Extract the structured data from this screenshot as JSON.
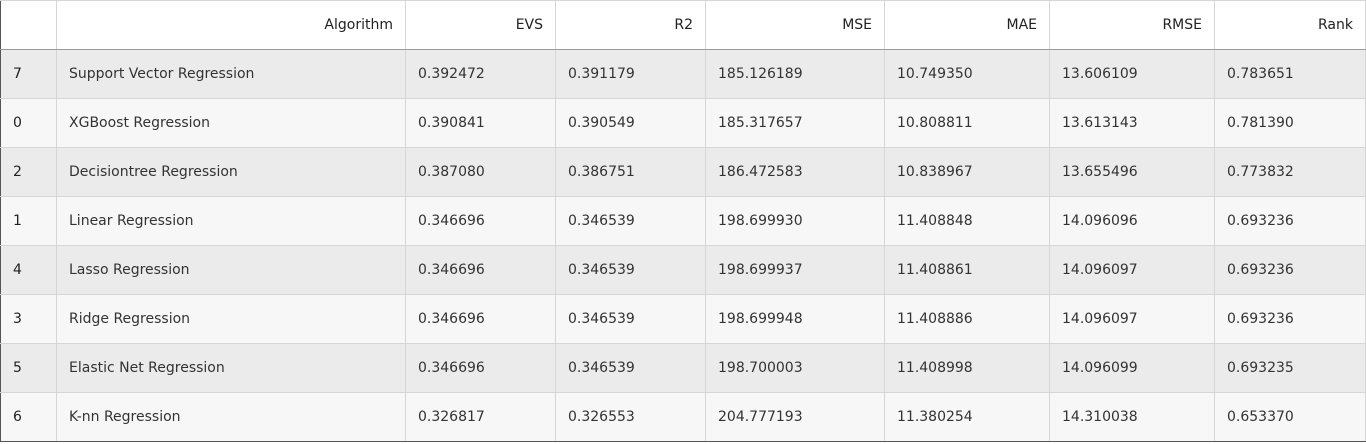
{
  "table": {
    "headers": {
      "index": "",
      "algorithm": "Algorithm",
      "evs": "EVS",
      "r2": "R2",
      "mse": "MSE",
      "mae": "MAE",
      "rmse": "RMSE",
      "rank": "Rank"
    },
    "rows": [
      {
        "index": "7",
        "algorithm": "Support Vector Regression",
        "evs": "0.392472",
        "r2": "0.391179",
        "mse": "185.126189",
        "mae": "10.749350",
        "rmse": "13.606109",
        "rank": "0.783651"
      },
      {
        "index": "0",
        "algorithm": "XGBoost Regression",
        "evs": "0.390841",
        "r2": "0.390549",
        "mse": "185.317657",
        "mae": "10.808811",
        "rmse": "13.613143",
        "rank": "0.781390"
      },
      {
        "index": "2",
        "algorithm": "Decisiontree Regression",
        "evs": "0.387080",
        "r2": "0.386751",
        "mse": "186.472583",
        "mae": "10.838967",
        "rmse": "13.655496",
        "rank": "0.773832"
      },
      {
        "index": "1",
        "algorithm": "Linear Regression",
        "evs": "0.346696",
        "r2": "0.346539",
        "mse": "198.699930",
        "mae": "11.408848",
        "rmse": "14.096096",
        "rank": "0.693236"
      },
      {
        "index": "4",
        "algorithm": "Lasso Regression",
        "evs": "0.346696",
        "r2": "0.346539",
        "mse": "198.699937",
        "mae": "11.408861",
        "rmse": "14.096097",
        "rank": "0.693236"
      },
      {
        "index": "3",
        "algorithm": "Ridge Regression",
        "evs": "0.346696",
        "r2": "0.346539",
        "mse": "198.699948",
        "mae": "11.408886",
        "rmse": "14.096097",
        "rank": "0.693236"
      },
      {
        "index": "5",
        "algorithm": "Elastic Net Regression",
        "evs": "0.346696",
        "r2": "0.346539",
        "mse": "198.700003",
        "mae": "11.408998",
        "rmse": "14.096099",
        "rank": "0.693235"
      },
      {
        "index": "6",
        "algorithm": "K-nn Regression",
        "evs": "0.326817",
        "r2": "0.326553",
        "mse": "204.777193",
        "mae": "11.380254",
        "rmse": "14.310038",
        "rank": "0.653370"
      }
    ]
  }
}
